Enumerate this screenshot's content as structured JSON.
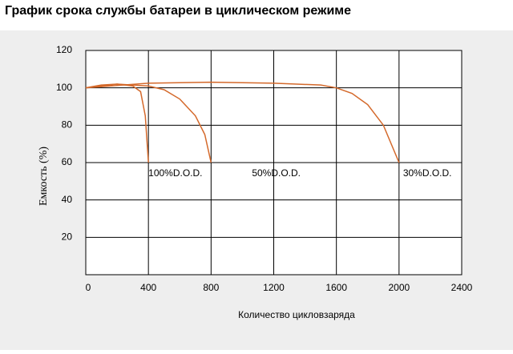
{
  "chart_data": {
    "type": "line",
    "title": "График срока службы батареи в циклическом режиме",
    "xlabel": "Количество цикловзаряда",
    "ylabel": "Емкость (%)",
    "xlim": [
      0,
      2400
    ],
    "xticks": [
      0,
      400,
      800,
      1200,
      1600,
      2000,
      2400
    ],
    "ylim": [
      0,
      120
    ],
    "yticks": [
      20,
      40,
      60,
      80,
      100,
      120
    ],
    "grid": true,
    "series": [
      {
        "name": "100%D.O.D.",
        "color": "#d4692b",
        "x": [
          0,
          100,
          200,
          300,
          350,
          380,
          400
        ],
        "values": [
          100,
          101.5,
          102,
          101,
          98,
          85,
          60
        ]
      },
      {
        "name": "50%D.O.D.",
        "color": "#d4692b",
        "x": [
          0,
          200,
          400,
          500,
          600,
          700,
          760,
          800
        ],
        "values": [
          100,
          102,
          101,
          99,
          94,
          85,
          75,
          60
        ]
      },
      {
        "name": "30%D.O.D.",
        "color": "#d4692b",
        "x": [
          0,
          400,
          800,
          1200,
          1500,
          1600,
          1700,
          1800,
          1900,
          2000
        ],
        "values": [
          100,
          102.5,
          103,
          102.5,
          101.5,
          100,
          97,
          91,
          80,
          60
        ]
      }
    ]
  }
}
